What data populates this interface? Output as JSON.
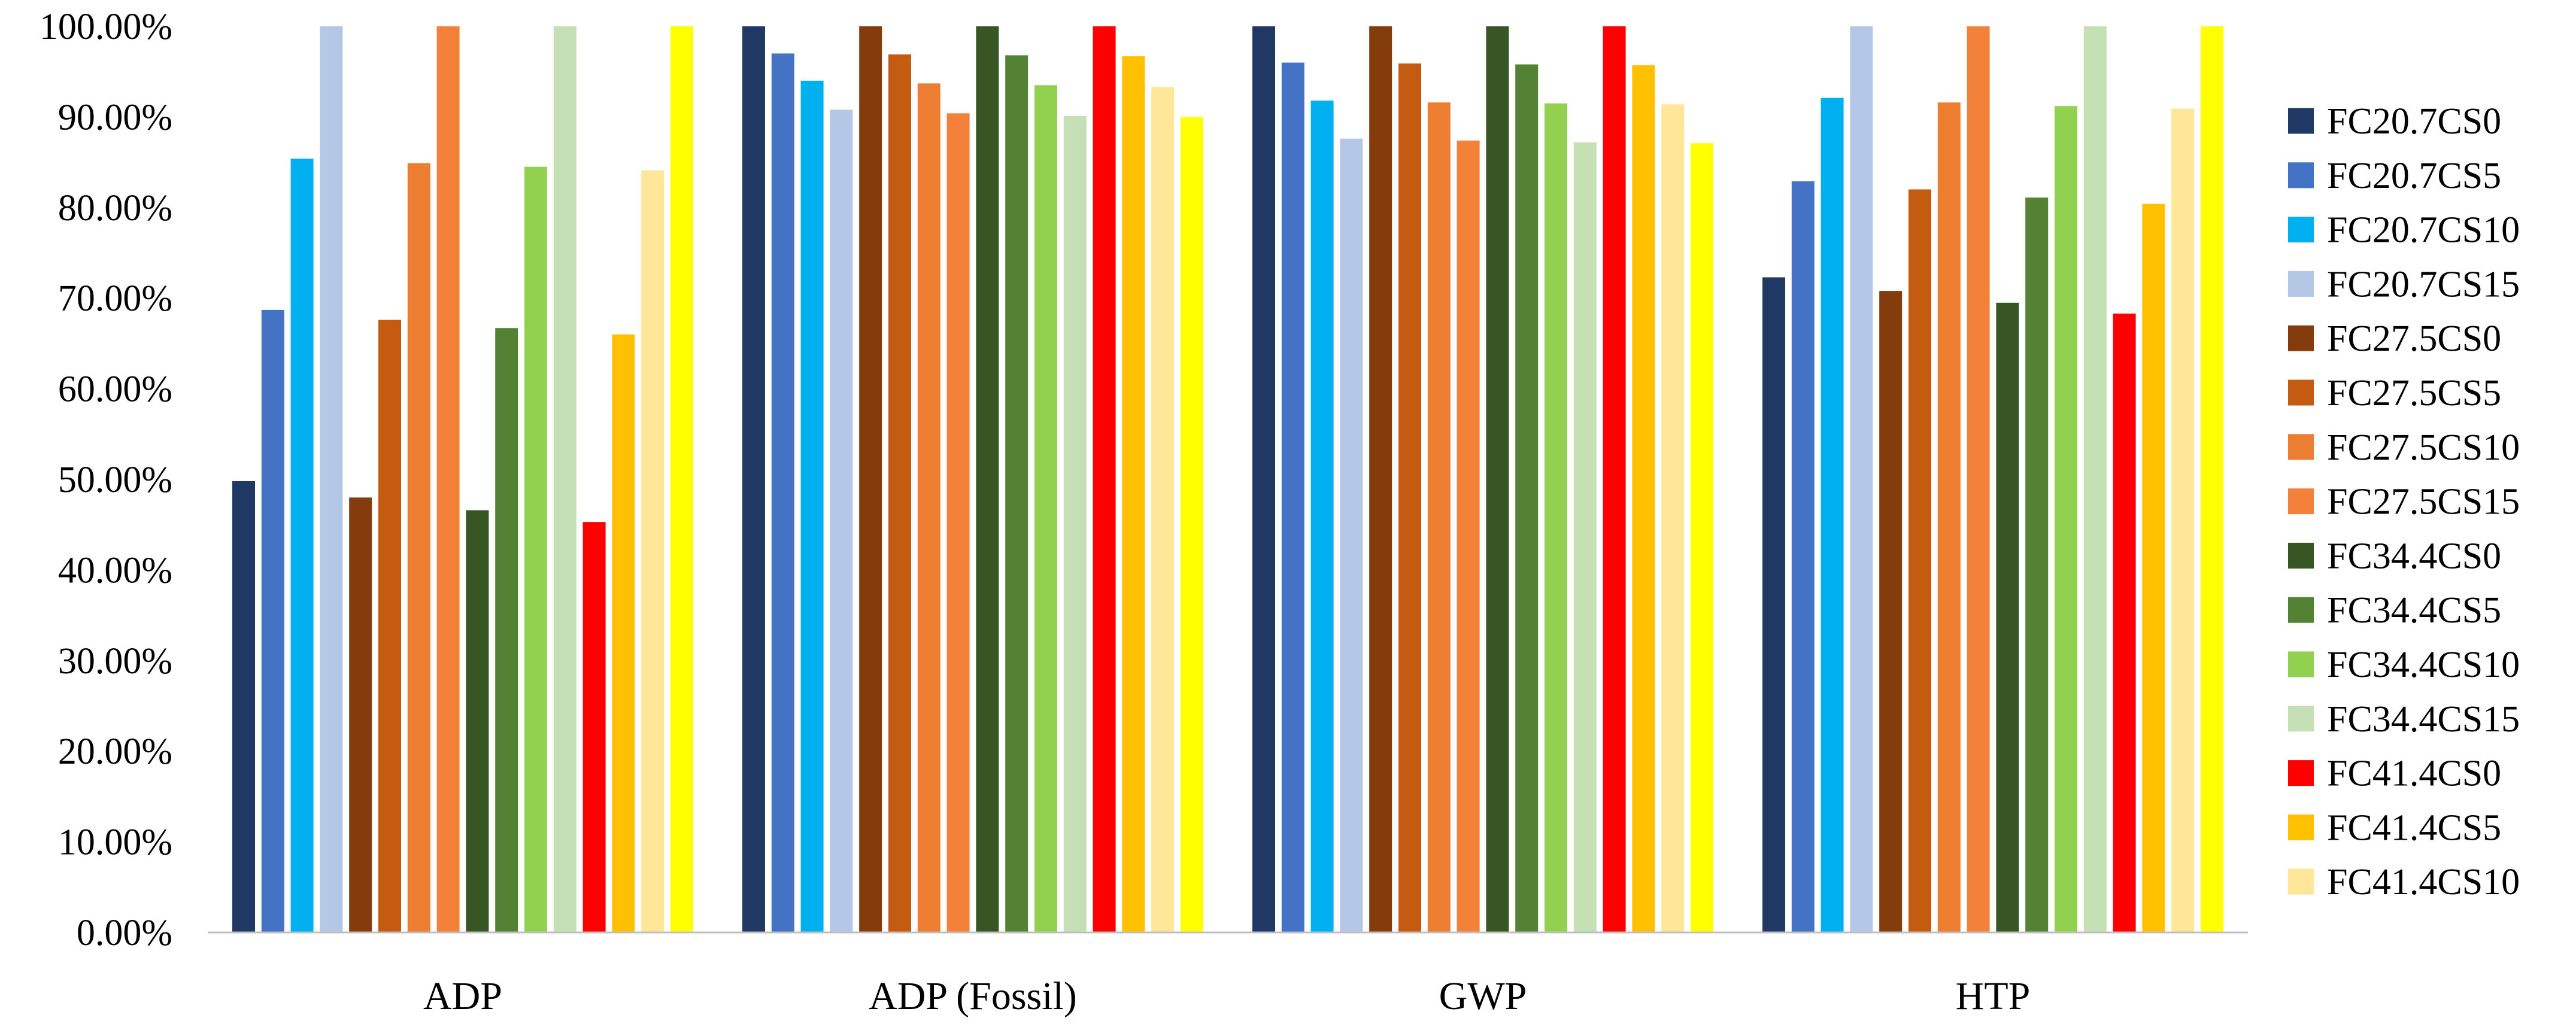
{
  "chart_data": {
    "type": "bar",
    "title": "",
    "xlabel": "",
    "ylabel": "",
    "ylim": [
      0,
      100
    ],
    "ytick_values": [
      0,
      10,
      20,
      30,
      40,
      50,
      60,
      70,
      80,
      90,
      100
    ],
    "ytick_labels": [
      "0.00%",
      "10.00%",
      "20.00%",
      "30.00%",
      "40.00%",
      "50.00%",
      "60.00%",
      "70.00%",
      "80.00%",
      "90.00%",
      "100.00%"
    ],
    "grid": false,
    "legend_position": "right",
    "categories": [
      "ADP",
      "ADP (Fossil)",
      "GWP",
      "HTP"
    ],
    "series": [
      {
        "name": "FC20.7CS0",
        "color": "#203864",
        "values": [
          49.8,
          100,
          100,
          72.3
        ]
      },
      {
        "name": "FC20.7CS5",
        "color": "#4472C4",
        "values": [
          68.7,
          97.0,
          96.0,
          82.9
        ]
      },
      {
        "name": "FC20.7CS10",
        "color": "#00B0F0",
        "values": [
          85.4,
          94.0,
          91.8,
          92.1
        ]
      },
      {
        "name": "FC20.7CS15",
        "color": "#B4C7E7",
        "values": [
          100,
          90.8,
          87.6,
          100
        ]
      },
      {
        "name": "FC27.5CS0",
        "color": "#843C0C",
        "values": [
          48.0,
          100,
          100,
          70.8
        ]
      },
      {
        "name": "FC27.5CS5",
        "color": "#C55A11",
        "values": [
          67.6,
          96.9,
          95.9,
          82.0
        ]
      },
      {
        "name": "FC27.5CS10",
        "color": "#ED7D31",
        "values": [
          84.9,
          93.7,
          91.6,
          91.6
        ]
      },
      {
        "name": "FC27.5CS15",
        "color": "#F4813A",
        "values": [
          100,
          90.4,
          87.4,
          100
        ]
      },
      {
        "name": "FC34.4CS0",
        "color": "#375623",
        "values": [
          46.6,
          100,
          100,
          69.5
        ]
      },
      {
        "name": "FC34.4CS5",
        "color": "#548235",
        "values": [
          66.7,
          96.8,
          95.8,
          81.1
        ]
      },
      {
        "name": "FC34.4CS10",
        "color": "#92D050",
        "values": [
          84.5,
          93.5,
          91.5,
          91.2
        ]
      },
      {
        "name": "FC34.4CS15",
        "color": "#C5E0B4",
        "values": [
          100,
          90.1,
          87.2,
          100
        ]
      },
      {
        "name": "FC41.4CS0",
        "color": "#FF0000",
        "values": [
          45.3,
          100,
          100,
          68.3
        ]
      },
      {
        "name": "FC41.4CS5",
        "color": "#FFC000",
        "values": [
          66.0,
          96.7,
          95.7,
          80.4
        ]
      },
      {
        "name": "FC41.4CS10",
        "color": "#FFE699",
        "values": [
          84.1,
          93.3,
          91.4,
          90.9
        ]
      },
      {
        "name": "",
        "color": "#FFFF00",
        "values": [
          100,
          90.0,
          87.1,
          100
        ]
      }
    ]
  }
}
